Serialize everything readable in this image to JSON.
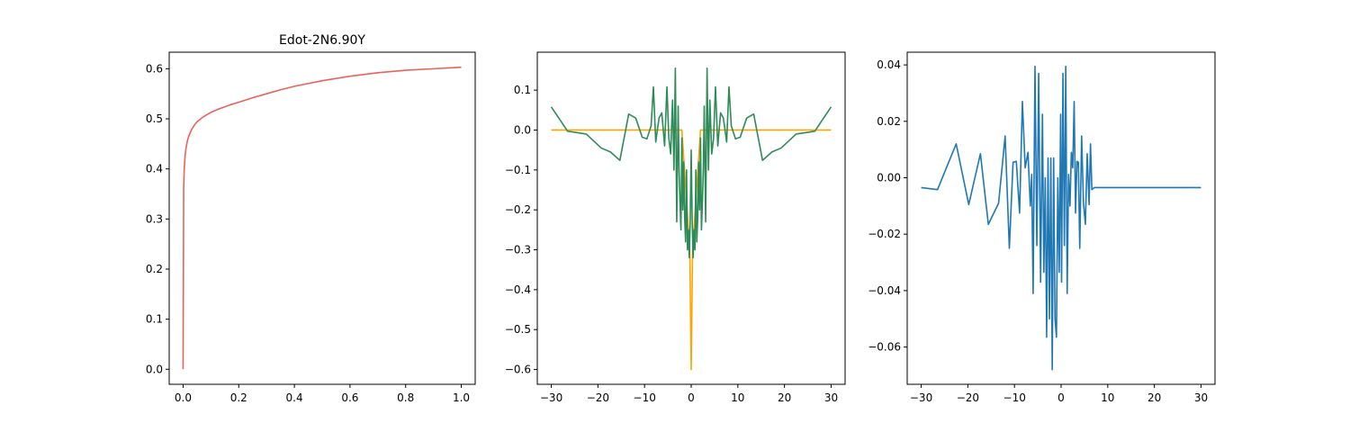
{
  "chart_data": [
    {
      "type": "line",
      "title": "Edot-2N6.90Y",
      "xlabel": "",
      "ylabel": "",
      "xlim": [
        -0.05,
        1.05
      ],
      "ylim": [
        -0.03,
        0.633
      ],
      "xticks": [
        0.0,
        0.2,
        0.4,
        0.6,
        0.8,
        1.0
      ],
      "xtick_labels": [
        "0.0",
        "0.2",
        "0.4",
        "0.6",
        "0.8",
        "1.0"
      ],
      "yticks": [
        0.0,
        0.1,
        0.2,
        0.3,
        0.4,
        0.5,
        0.6
      ],
      "ytick_labels": [
        "0.0",
        "0.1",
        "0.2",
        "0.3",
        "0.4",
        "0.5",
        "0.6"
      ],
      "grid": false,
      "series": [
        {
          "color": "#e8635b",
          "x": [
            0.0,
            0.002,
            0.004,
            0.007,
            0.01,
            0.015,
            0.02,
            0.03,
            0.04,
            0.05,
            0.07,
            0.1,
            0.13,
            0.17,
            0.2,
            0.25,
            0.3,
            0.35,
            0.4,
            0.5,
            0.6,
            0.7,
            0.8,
            0.9,
            1.0
          ],
          "y": [
            0.0,
            0.36,
            0.4,
            0.425,
            0.44,
            0.455,
            0.465,
            0.478,
            0.487,
            0.494,
            0.503,
            0.513,
            0.52,
            0.528,
            0.533,
            0.542,
            0.55,
            0.558,
            0.565,
            0.576,
            0.585,
            0.592,
            0.597,
            0.6,
            0.603
          ]
        }
      ]
    },
    {
      "type": "line",
      "title": "",
      "xlabel": "",
      "ylabel": "",
      "xlim": [
        -33,
        33
      ],
      "ylim": [
        -0.637,
        0.195
      ],
      "xticks": [
        -30,
        -20,
        -10,
        0,
        10,
        20,
        30
      ],
      "xtick_labels": [
        "−30",
        "−20",
        "−10",
        "0",
        "10",
        "20",
        "30"
      ],
      "yticks": [
        0.1,
        0.0,
        -0.1,
        -0.2,
        -0.3,
        -0.4,
        -0.5,
        -0.6
      ],
      "ytick_labels": [
        "0.1",
        "0.0",
        "−0.1",
        "−0.2",
        "−0.3",
        "−0.4",
        "−0.5",
        "−0.6"
      ],
      "grid": false,
      "series": [
        {
          "color": "#ffa500",
          "x": [
            -30,
            -2,
            -0.3,
            0,
            0.3,
            2,
            30
          ],
          "y": [
            0.0,
            0.0,
            -0.3,
            -0.6,
            -0.3,
            0.0,
            0.0
          ]
        },
        {
          "color": "#2e8b57",
          "x": [
            -30,
            -26.5,
            -22.5,
            -19.3,
            -17.3,
            -15.3,
            -13.4,
            -11.9,
            -10.5,
            -9.5,
            -8.6,
            -8.1,
            -7.6,
            -6.9,
            -6.3,
            -5.7,
            -5.2,
            -4.8,
            -4.4,
            -4.0,
            -3.7,
            -3.4,
            -3.1,
            -2.8,
            -2.6,
            -2.4,
            -2.2,
            -2.0,
            -1.8,
            -1.6,
            -1.4,
            -1.2,
            -1.0,
            -0.8,
            -0.6,
            -0.4,
            -0.2,
            0,
            0.2,
            0.4,
            0.6,
            0.8,
            1.0,
            1.2,
            1.4,
            1.6,
            1.8,
            2.0,
            2.2,
            2.4,
            2.6,
            2.8,
            3.1,
            3.4,
            3.7,
            4.0,
            4.4,
            4.8,
            5.2,
            5.7,
            6.3,
            6.9,
            7.6,
            8.1,
            8.6,
            9.5,
            10.5,
            11.9,
            13.4,
            15.3,
            17.3,
            19.3,
            22.5,
            26.5,
            30
          ],
          "y": [
            0.058,
            -0.003,
            -0.01,
            -0.045,
            -0.055,
            -0.076,
            0.04,
            0.03,
            -0.018,
            -0.022,
            0.01,
            0.108,
            -0.03,
            0.03,
            0.043,
            -0.04,
            0.108,
            -0.02,
            -0.06,
            0.075,
            -0.1,
            0.155,
            -0.23,
            0.06,
            -0.1,
            -0.18,
            -0.25,
            -0.02,
            -0.2,
            -0.08,
            -0.22,
            -0.28,
            -0.1,
            -0.3,
            -0.25,
            -0.32,
            -0.22,
            -0.05,
            -0.22,
            -0.32,
            -0.25,
            -0.3,
            -0.1,
            -0.28,
            -0.22,
            -0.08,
            -0.2,
            -0.02,
            -0.25,
            -0.18,
            -0.1,
            0.06,
            -0.23,
            0.155,
            -0.1,
            0.075,
            -0.06,
            -0.02,
            0.108,
            -0.04,
            0.043,
            0.03,
            -0.03,
            0.108,
            0.01,
            -0.022,
            -0.018,
            0.03,
            0.04,
            -0.076,
            -0.055,
            -0.045,
            -0.01,
            -0.003,
            0.058
          ]
        }
      ]
    },
    {
      "type": "line",
      "title": "",
      "xlabel": "",
      "ylabel": "",
      "xlim": [
        -33,
        33
      ],
      "ylim": [
        -0.0732,
        0.0445
      ],
      "xticks": [
        -30,
        -20,
        -10,
        0,
        10,
        20,
        30
      ],
      "xtick_labels": [
        "−30",
        "−20",
        "−10",
        "0",
        "10",
        "20",
        "30"
      ],
      "yticks": [
        0.04,
        0.02,
        0.0,
        -0.02,
        -0.04,
        -0.06
      ],
      "ytick_labels": [
        "0.04",
        "0.02",
        "0.00",
        "−0.02",
        "−0.04",
        "−0.06"
      ],
      "grid": false,
      "series": [
        {
          "color": "#1f77b4",
          "x": [
            -30,
            -26.5,
            -22.5,
            -19.8,
            -17.3,
            -15.6,
            -13.4,
            -12.0,
            -11.1,
            -10.3,
            -9.6,
            -8.9,
            -8.3,
            -7.7,
            -7.1,
            -6.6,
            -6.3,
            -6.0,
            -5.6,
            -5.2,
            -4.8,
            -4.4,
            -4.0,
            -3.7,
            -3.4,
            -3.1,
            -2.8,
            -2.5,
            -2.2,
            -1.9,
            -1.6,
            -1.3,
            -1.0,
            -0.7,
            -0.4,
            -0.1,
            0.1,
            0.4,
            0.7,
            1.0,
            1.3,
            1.6,
            1.9,
            2.2,
            2.5,
            2.8,
            3.1,
            3.4,
            3.7,
            4.0,
            4.4,
            4.8,
            5.2,
            5.6,
            6.0,
            6.3,
            6.6,
            7.1,
            7.7,
            8.3,
            8.9,
            9.6,
            10.3,
            11.1,
            12.0,
            13.4,
            15.6,
            17.3,
            19.8,
            22.5,
            26.5,
            30
          ],
          "y": [
            -0.0035,
            -0.0042,
            0.012,
            -0.0095,
            0.0085,
            -0.0165,
            -0.009,
            0.0148,
            -0.025,
            0.0055,
            0.0058,
            -0.0125,
            0.027,
            0.0035,
            0.009,
            -0.01,
            0.0012,
            -0.041,
            0.0395,
            -0.024,
            0.037,
            -0.037,
            0.0225,
            -0.0335,
            0.0,
            -0.0565,
            0.007,
            -0.05,
            0.007,
            -0.068,
            0.007,
            -0.05,
            -0.0565,
            0.0,
            -0.0335,
            0.0225,
            -0.037,
            0.037,
            -0.024,
            0.0395,
            -0.041,
            0.0012,
            -0.01,
            0.009,
            0.0035,
            0.027,
            -0.0125,
            0.0058,
            0.0055,
            -0.025,
            0.0148,
            -0.009,
            -0.0165,
            0.0085,
            -0.0095,
            0.012,
            -0.0042,
            -0.0035,
            -0.0035,
            -0.0035,
            -0.0035,
            -0.0035,
            -0.0035,
            -0.0035,
            -0.0035,
            -0.0035,
            -0.0035,
            -0.0035,
            -0.0035,
            -0.0035,
            -0.0035,
            -0.0035
          ]
        }
      ]
    }
  ]
}
